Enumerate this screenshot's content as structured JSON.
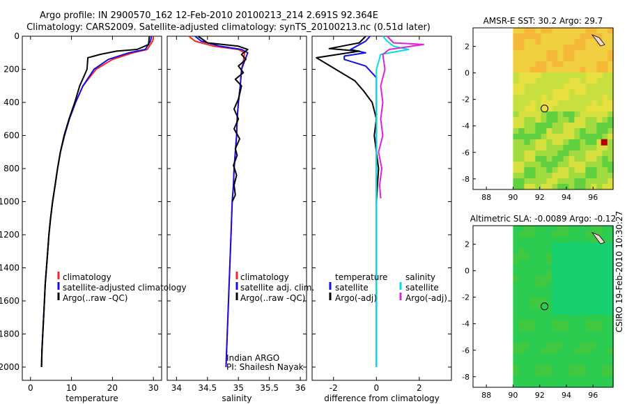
{
  "title_line1": "Argo profile: IN 2900570_162 12-Feb-2010 20100213_214 2.691S 92.364E",
  "title_line2": "Climatology: CARS2009. Satellite-adjusted climatology: synTS_20100213.nc (0.51d later)",
  "side_label": "CSIRO 19-Feb-2010 10:30:27",
  "colors": {
    "climatology": "#ff2020",
    "satellite": "#1010e0",
    "argo": "#000000",
    "sal_satellite": "#00e0e0",
    "sal_argo": "#e020e0"
  },
  "chart_data": [
    {
      "type": "line",
      "xlabel": "temperature",
      "xlim": [
        -2,
        32
      ],
      "ylim": [
        2080,
        0
      ],
      "xticks": [
        "0",
        "10",
        "20",
        "30"
      ],
      "yticks": [
        "0",
        "200",
        "400",
        "600",
        "800",
        "1000",
        "1200",
        "1400",
        "1600",
        "1800",
        "2000"
      ],
      "legend": [
        "climatology",
        "satellite-adjusted climatology",
        "Argo(..raw -QC)"
      ],
      "series": [
        {
          "name": "climatology",
          "color": "#ff2020",
          "points": [
            [
              30,
              0
            ],
            [
              29.8,
              30
            ],
            [
              28.5,
              80
            ],
            [
              25,
              100
            ],
            [
              20,
              140
            ],
            [
              16,
              200
            ],
            [
              12.8,
              300
            ],
            [
              11,
              400
            ],
            [
              9.5,
              500
            ],
            [
              8.3,
              600
            ],
            [
              7.3,
              700
            ],
            [
              6.6,
              800
            ],
            [
              6,
              900
            ],
            [
              5.4,
              1000
            ],
            [
              4.9,
              1100
            ],
            [
              4.5,
              1200
            ],
            [
              4.2,
              1300
            ],
            [
              3.9,
              1400
            ],
            [
              3.6,
              1500
            ],
            [
              3.4,
              1600
            ],
            [
              3.2,
              1700
            ],
            [
              3,
              1800
            ],
            [
              2.8,
              1900
            ],
            [
              2.7,
              2000
            ]
          ]
        },
        {
          "name": "satellite-adjusted climatology",
          "color": "#1010e0",
          "points": [
            [
              29.5,
              0
            ],
            [
              29.3,
              30
            ],
            [
              28,
              80
            ],
            [
              24,
              100
            ],
            [
              19,
              140
            ],
            [
              15.5,
              200
            ],
            [
              12.8,
              300
            ],
            [
              11,
              400
            ],
            [
              9.5,
              500
            ],
            [
              8.3,
              600
            ],
            [
              7.3,
              700
            ],
            [
              6.6,
              800
            ],
            [
              6,
              900
            ],
            [
              5.4,
              1000
            ],
            [
              4.9,
              1100
            ],
            [
              4.5,
              1200
            ],
            [
              4.2,
              1300
            ],
            [
              3.9,
              1400
            ],
            [
              3.6,
              1500
            ],
            [
              3.4,
              1600
            ],
            [
              3.2,
              1700
            ],
            [
              3,
              1800
            ],
            [
              2.8,
              1900
            ],
            [
              2.7,
              2000
            ]
          ]
        },
        {
          "name": "Argo(..raw -QC)",
          "color": "#000000",
          "points": [
            [
              29,
              0
            ],
            [
              28.8,
              50
            ],
            [
              26,
              80
            ],
            [
              21,
              90
            ],
            [
              17,
              110
            ],
            [
              14,
              130
            ],
            [
              13.8,
              200
            ],
            [
              12,
              300
            ],
            [
              10.8,
              400
            ],
            [
              9.4,
              500
            ],
            [
              8.2,
              600
            ],
            [
              7.3,
              700
            ],
            [
              6.6,
              800
            ],
            [
              6,
              900
            ],
            [
              5.4,
              1000
            ],
            [
              4.9,
              1100
            ],
            [
              4.5,
              1200
            ],
            [
              4.2,
              1300
            ],
            [
              3.9,
              1400
            ],
            [
              3.6,
              1500
            ],
            [
              3.4,
              1600
            ],
            [
              3.2,
              1700
            ],
            [
              3,
              1800
            ],
            [
              2.8,
              1900
            ],
            [
              2.7,
              2000
            ]
          ]
        }
      ]
    },
    {
      "type": "line",
      "xlabel": "salinity",
      "xlim": [
        33.85,
        36.1
      ],
      "ylim": [
        2080,
        0
      ],
      "xticks": [
        "34",
        "34.5",
        "35",
        "35.5",
        "36"
      ],
      "legend": [
        "climatology",
        "satellite adj. clim.",
        "Argo(..raw -QC)"
      ],
      "annotations": [
        "Indian ARGO",
        "PI: Shailesh Nayak"
      ],
      "series": [
        {
          "name": "climatology",
          "color": "#ff2020",
          "points": [
            [
              34.2,
              0
            ],
            [
              34.3,
              30
            ],
            [
              34.6,
              60
            ],
            [
              35,
              80
            ],
            [
              35.1,
              100
            ],
            [
              35.08,
              150
            ],
            [
              35.05,
              200
            ],
            [
              35.03,
              300
            ],
            [
              35.0,
              400
            ],
            [
              34.98,
              500
            ],
            [
              34.97,
              600
            ],
            [
              34.95,
              700
            ],
            [
              34.93,
              800
            ],
            [
              34.92,
              900
            ],
            [
              34.9,
              1000
            ],
            [
              34.88,
              1200
            ],
            [
              34.86,
              1400
            ],
            [
              34.84,
              1600
            ],
            [
              34.82,
              1800
            ],
            [
              34.8,
              2000
            ]
          ]
        },
        {
          "name": "satellite adj. clim.",
          "color": "#1010e0",
          "points": [
            [
              34.3,
              0
            ],
            [
              34.4,
              30
            ],
            [
              34.7,
              60
            ],
            [
              35.05,
              80
            ],
            [
              35.15,
              100
            ],
            [
              35.1,
              150
            ],
            [
              35.05,
              200
            ],
            [
              35.03,
              300
            ],
            [
              35.0,
              400
            ],
            [
              34.98,
              500
            ],
            [
              34.97,
              600
            ],
            [
              34.95,
              700
            ],
            [
              34.93,
              800
            ],
            [
              34.92,
              900
            ],
            [
              34.9,
              1000
            ],
            [
              34.88,
              1200
            ],
            [
              34.86,
              1400
            ],
            [
              34.84,
              1600
            ],
            [
              34.82,
              1800
            ],
            [
              34.8,
              2000
            ]
          ]
        },
        {
          "name": "Argo(..raw -QC)",
          "color": "#000000",
          "points": [
            [
              34.35,
              0
            ],
            [
              34.5,
              40
            ],
            [
              35.0,
              60
            ],
            [
              35.15,
              80
            ],
            [
              35.05,
              110
            ],
            [
              35.12,
              140
            ],
            [
              35.0,
              180
            ],
            [
              35.08,
              220
            ],
            [
              34.95,
              260
            ],
            [
              35.05,
              300
            ],
            [
              35.0,
              380
            ],
            [
              34.93,
              440
            ],
            [
              35.0,
              500
            ],
            [
              34.93,
              560
            ],
            [
              35.02,
              620
            ],
            [
              34.95,
              680
            ],
            [
              34.98,
              720
            ],
            [
              34.92,
              780
            ],
            [
              34.97,
              840
            ],
            [
              34.93,
              900
            ],
            [
              34.95,
              960
            ],
            [
              34.9,
              1000
            ]
          ]
        }
      ]
    },
    {
      "type": "line",
      "xlabel": "difference from climatology",
      "xlim": [
        -3,
        3.5
      ],
      "ylim": [
        2080,
        0
      ],
      "xticks": [
        "-2",
        "0",
        "2"
      ],
      "legend": [
        "temperature",
        "satellite",
        "Argo(-adj)",
        "salinity",
        "satellite",
        "Argo(-adj)"
      ],
      "series": [
        {
          "name": "satellite",
          "color": "#1010e0",
          "points": [
            [
              -0.3,
              0
            ],
            [
              -0.5,
              30
            ],
            [
              -1.2,
              80
            ],
            [
              -0.5,
              100
            ],
            [
              -1.5,
              120
            ],
            [
              -1.5,
              140
            ],
            [
              -0.5,
              180
            ],
            [
              0,
              250
            ],
            [
              0,
              2000
            ]
          ]
        },
        {
          "name": "Argo(-adj)",
          "color": "#000000",
          "points": [
            [
              -0.5,
              0
            ],
            [
              -0.8,
              40
            ],
            [
              -2.2,
              75
            ],
            [
              -0.8,
              90
            ],
            [
              -2.8,
              130
            ],
            [
              -1.0,
              270
            ],
            [
              -0.6,
              330
            ],
            [
              -0.2,
              400
            ],
            [
              0,
              500
            ],
            [
              -0.1,
              600
            ],
            [
              0.1,
              800
            ],
            [
              0,
              1000
            ]
          ]
        },
        {
          "name": "satellite",
          "color": "#00e0e0",
          "points": [
            [
              0.3,
              0
            ],
            [
              0.5,
              30
            ],
            [
              0.8,
              60
            ],
            [
              1.5,
              80
            ],
            [
              0.2,
              110
            ],
            [
              0.0,
              200
            ],
            [
              0.0,
              400
            ],
            [
              0.0,
              1000
            ],
            [
              0.0,
              2000
            ]
          ]
        },
        {
          "name": "Argo(-adj)",
          "color": "#e020e0",
          "points": [
            [
              0.5,
              0
            ],
            [
              0.8,
              40
            ],
            [
              2.2,
              50
            ],
            [
              0.6,
              80
            ],
            [
              0.3,
              110
            ],
            [
              0.4,
              200
            ],
            [
              0.2,
              300
            ],
            [
              0.3,
              400
            ],
            [
              0.2,
              500
            ],
            [
              0.3,
              600
            ],
            [
              0.1,
              700
            ],
            [
              0.25,
              800
            ],
            [
              0.15,
              900
            ],
            [
              0.2,
              980
            ]
          ]
        }
      ]
    },
    {
      "type": "heatmap",
      "title": "AMSR-E SST: 30.2 Argo: 29.7",
      "xlim": [
        87,
        97.5
      ],
      "ylim": [
        -8.8,
        3.4
      ],
      "xticks": [
        "88",
        "90",
        "92",
        "94",
        "96"
      ],
      "yticks": [
        "2",
        "0",
        "-2",
        "-4",
        "-6",
        "-8"
      ],
      "marker": [
        92.36,
        -2.69
      ]
    },
    {
      "type": "heatmap",
      "title": "Altimetric SLA: -0.0089 Argo: -0.12",
      "xlim": [
        87,
        97.5
      ],
      "ylim": [
        -8.8,
        3.4
      ],
      "xticks": [
        "88",
        "90",
        "92",
        "94",
        "96"
      ],
      "yticks": [
        "2",
        "0",
        "-2",
        "-4",
        "-6",
        "-8"
      ],
      "marker": [
        92.36,
        -2.69
      ]
    }
  ]
}
